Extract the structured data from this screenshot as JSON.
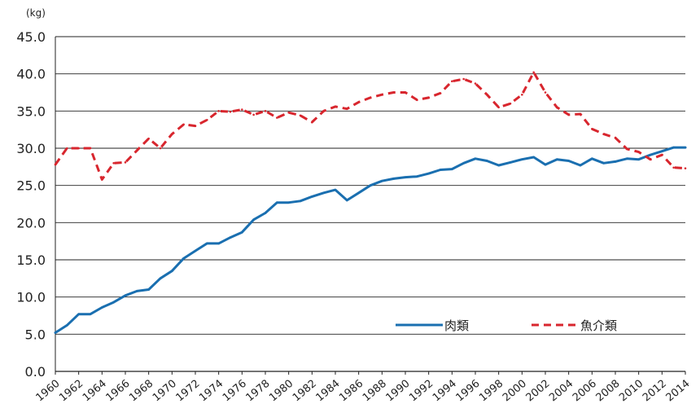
{
  "chart_data": {
    "type": "line",
    "title": "",
    "xlabel": "",
    "ylabel": "",
    "unit_label": "(kg)",
    "ylim": [
      0,
      45
    ],
    "y_ticks": [
      "0.0",
      "5.0",
      "10.0",
      "15.0",
      "20.0",
      "25.0",
      "30.0",
      "35.0",
      "40.0",
      "45.0"
    ],
    "x_ticks": [
      "1960",
      "1962",
      "1964",
      "1966",
      "1968",
      "1970",
      "1972",
      "1974",
      "1976",
      "1978",
      "1980",
      "1982",
      "1984",
      "1986",
      "1988",
      "1990",
      "1992",
      "1994",
      "1996",
      "1998",
      "2000",
      "2002",
      "2004",
      "2006",
      "2008",
      "2010",
      "2012",
      "2014"
    ],
    "grid": "horizontal",
    "legend_position": "bottom-right",
    "x": [
      1960,
      1961,
      1962,
      1963,
      1964,
      1965,
      1966,
      1967,
      1968,
      1969,
      1970,
      1971,
      1972,
      1973,
      1974,
      1975,
      1976,
      1977,
      1978,
      1979,
      1980,
      1981,
      1982,
      1983,
      1984,
      1985,
      1986,
      1987,
      1988,
      1989,
      1990,
      1991,
      1992,
      1993,
      1994,
      1995,
      1996,
      1997,
      1998,
      1999,
      2000,
      2001,
      2002,
      2003,
      2004,
      2005,
      2006,
      2007,
      2008,
      2009,
      2010,
      2011,
      2012,
      2013,
      2014
    ],
    "series": [
      {
        "name": "肉類",
        "color": "#1a6fb0",
        "style": "solid",
        "values": [
          5.2,
          6.2,
          7.7,
          7.7,
          8.6,
          9.3,
          10.2,
          10.8,
          11.0,
          12.5,
          13.5,
          15.2,
          16.2,
          17.2,
          17.2,
          18.0,
          18.7,
          20.4,
          21.3,
          22.7,
          22.7,
          22.9,
          23.5,
          24.0,
          24.4,
          23.0,
          24.0,
          25.0,
          25.6,
          25.9,
          26.1,
          26.2,
          26.6,
          27.1,
          27.2,
          28.0,
          28.6,
          28.3,
          27.7,
          28.1,
          28.5,
          28.8,
          27.8,
          28.5,
          28.3,
          27.7,
          28.6,
          28.0,
          28.2,
          28.6,
          28.5,
          29.1,
          29.6,
          30.1,
          30.1
        ]
      },
      {
        "name": "魚介類",
        "color": "#d8262e",
        "style": "dashed",
        "values": [
          27.8,
          30.0,
          30.0,
          30.0,
          25.8,
          28.0,
          28.1,
          29.7,
          31.3,
          30.0,
          31.9,
          33.2,
          33.0,
          33.8,
          35.0,
          34.9,
          35.2,
          34.5,
          35.0,
          34.1,
          34.8,
          34.4,
          33.5,
          35.0,
          35.6,
          35.3,
          36.2,
          36.8,
          37.2,
          37.5,
          37.5,
          36.5,
          36.8,
          37.4,
          39.0,
          39.3,
          38.7,
          37.2,
          35.5,
          36.0,
          37.2,
          40.2,
          37.5,
          35.5,
          34.5,
          34.6,
          32.6,
          31.9,
          31.4,
          29.9,
          29.5,
          28.5,
          29.1,
          27.4,
          27.3
        ]
      }
    ]
  }
}
